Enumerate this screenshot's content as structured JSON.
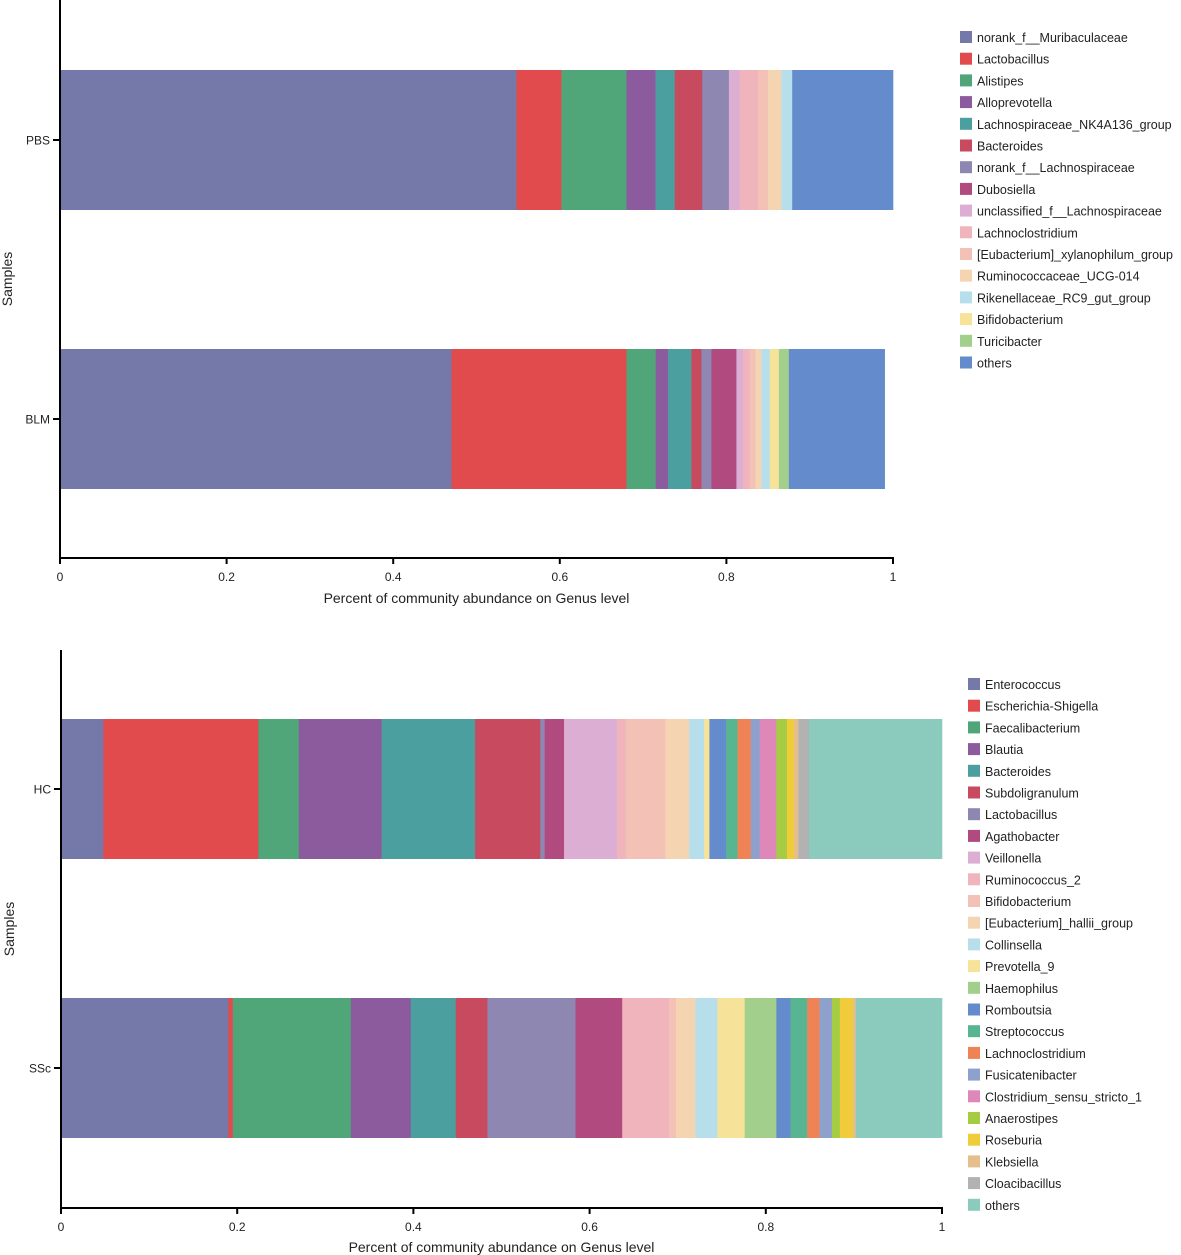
{
  "chart_data": [
    {
      "type": "bar",
      "orientation": "horizontal",
      "stacked": true,
      "xlabel": "Percent of community abundance on Genus level",
      "ylabel": "Samples",
      "xlim": [
        0,
        1
      ],
      "xticks": [
        "0",
        "0.2",
        "0.4",
        "0.6",
        "0.8",
        "1"
      ],
      "categories": [
        "PBS",
        "BLM"
      ],
      "legend_position": "right",
      "series": [
        {
          "name": "norank_f__Muribaculaceae",
          "color": "#7479a9",
          "values": [
            0.548,
            0.47
          ]
        },
        {
          "name": "Lactobacillus",
          "color": "#e14b4e",
          "values": [
            0.054,
            0.21
          ]
        },
        {
          "name": "Alistipes",
          "color": "#50a679",
          "values": [
            0.078,
            0.035
          ]
        },
        {
          "name": "Alloprevotella",
          "color": "#8c5b9d",
          "values": [
            0.035,
            0.015
          ]
        },
        {
          "name": "Lachnospiraceae_NK4A136_group",
          "color": "#4ba09f",
          "values": [
            0.023,
            0.028
          ]
        },
        {
          "name": "Bacteroides",
          "color": "#c84a5f",
          "values": [
            0.033,
            0.012
          ]
        },
        {
          "name": "norank_f__Lachnospiraceae",
          "color": "#8d87b2",
          "values": [
            0.032,
            0.012
          ]
        },
        {
          "name": "Dubosiella",
          "color": "#b04a7f",
          "values": [
            0.0,
            0.03
          ]
        },
        {
          "name": "unclassified_f__Lachnospiraceae",
          "color": "#dcaed3",
          "values": [
            0.013,
            0.008
          ]
        },
        {
          "name": "Lachnoclostridium",
          "color": "#f0b4bd",
          "values": [
            0.022,
            0.008
          ]
        },
        {
          "name": "[Eubacterium]_xylanophilum_group",
          "color": "#f3c1b5",
          "values": [
            0.012,
            0.007
          ]
        },
        {
          "name": "Ruminococcaceae_UCG-014",
          "color": "#f5d5b1",
          "values": [
            0.016,
            0.007
          ]
        },
        {
          "name": "Rikenellaceae_RC9_gut_group",
          "color": "#b7dfeb",
          "values": [
            0.013,
            0.01
          ]
        },
        {
          "name": "Bifidobacterium",
          "color": "#f7e299",
          "values": [
            0.0,
            0.011
          ]
        },
        {
          "name": "Turicibacter",
          "color": "#a2cf8b",
          "values": [
            0.0,
            0.012
          ]
        },
        {
          "name": "others",
          "color": "#648bcb",
          "values": [
            0.121,
            0.115
          ]
        }
      ]
    },
    {
      "type": "bar",
      "orientation": "horizontal",
      "stacked": true,
      "xlabel": "Percent of community abundance on Genus level",
      "ylabel": "Samples",
      "xlim": [
        0,
        1
      ],
      "xticks": [
        "0",
        "0.2",
        "0.4",
        "0.6",
        "0.8",
        "1"
      ],
      "categories": [
        "HC",
        "SSc"
      ],
      "legend_position": "right",
      "series": [
        {
          "name": "Enterococcus",
          "color": "#7479a9",
          "values": [
            0.048,
            0.19
          ]
        },
        {
          "name": "Escherichia-Shigella",
          "color": "#e14b4e",
          "values": [
            0.176,
            0.005
          ]
        },
        {
          "name": "Faecalibacterium",
          "color": "#50a679",
          "values": [
            0.046,
            0.134
          ]
        },
        {
          "name": "Blautia",
          "color": "#8c5b9d",
          "values": [
            0.094,
            0.068
          ]
        },
        {
          "name": "Bacteroides",
          "color": "#4ba09f",
          "values": [
            0.106,
            0.051
          ]
        },
        {
          "name": "Subdoligranulum",
          "color": "#c84a5f",
          "values": [
            0.074,
            0.036
          ]
        },
        {
          "name": "Lactobacillus",
          "color": "#8d87b2",
          "values": [
            0.005,
            0.1
          ]
        },
        {
          "name": "Agathobacter",
          "color": "#b04a7f",
          "values": [
            0.022,
            0.053
          ]
        },
        {
          "name": "Veillonella",
          "color": "#dcaed3",
          "values": [
            0.06,
            0.0
          ]
        },
        {
          "name": "Ruminococcus_2",
          "color": "#f0b4bd",
          "values": [
            0.01,
            0.053
          ]
        },
        {
          "name": "Bifidobacterium",
          "color": "#f3c1b5",
          "values": [
            0.045,
            0.008
          ]
        },
        {
          "name": "[Eubacterium]_hallii_group",
          "color": "#f5d5b1",
          "values": [
            0.027,
            0.022
          ]
        },
        {
          "name": "Collinsella",
          "color": "#b7dfeb",
          "values": [
            0.017,
            0.025
          ]
        },
        {
          "name": "Prevotella_9",
          "color": "#f7e299",
          "values": [
            0.006,
            0.031
          ]
        },
        {
          "name": "Haemophilus",
          "color": "#a2cf8b",
          "values": [
            0.0,
            0.036
          ]
        },
        {
          "name": "Romboutsia",
          "color": "#648bcb",
          "values": [
            0.019,
            0.016
          ]
        },
        {
          "name": "Streptococcus",
          "color": "#58b592",
          "values": [
            0.013,
            0.019
          ]
        },
        {
          "name": "Lachnoclostridium",
          "color": "#ef8356",
          "values": [
            0.015,
            0.014
          ]
        },
        {
          "name": "Fusicatenibacter",
          "color": "#8ea1cc",
          "values": [
            0.01,
            0.014
          ]
        },
        {
          "name": "Clostridium_sensu_stricto_1",
          "color": "#de87b9",
          "values": [
            0.019,
            0.0
          ]
        },
        {
          "name": "Anaerostipes",
          "color": "#a6cc44",
          "values": [
            0.012,
            0.009
          ]
        },
        {
          "name": "Roseburia",
          "color": "#f0cc3a",
          "values": [
            0.008,
            0.015
          ]
        },
        {
          "name": "Klebsiella",
          "color": "#e4bf8c",
          "values": [
            0.005,
            0.003
          ]
        },
        {
          "name": "Cloacibacillus",
          "color": "#b2b2b2",
          "values": [
            0.012,
            0.0
          ]
        },
        {
          "name": "others",
          "color": "#8bcbbd",
          "values": [
            0.151,
            0.098
          ]
        }
      ]
    }
  ]
}
